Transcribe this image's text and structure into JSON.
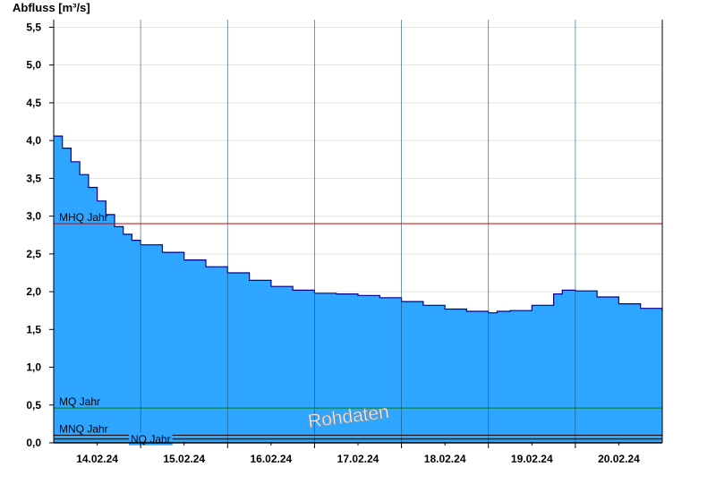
{
  "chart_data": {
    "type": "area",
    "ylabel": "Abfluss [m³/s]",
    "watermark": "Rohdaten",
    "ylim": [
      0,
      5.6
    ],
    "y_ticks": [
      "0,0",
      "0,5",
      "1,0",
      "1,5",
      "2,0",
      "2,5",
      "3,0",
      "3,5",
      "4,0",
      "4,5",
      "5,0",
      "5,5"
    ],
    "x_ticks": [
      "14.02.24",
      "15.02.24",
      "16.02.24",
      "17.02.24",
      "18.02.24",
      "19.02.24",
      "20.02.24"
    ],
    "x_range_days": [
      13.0,
      20.0
    ],
    "fill_color": "#2ea6ff",
    "line_color": "#00008b",
    "grid": true,
    "reference_lines": [
      {
        "label": "MHQ Jahr",
        "value": 2.9,
        "color": "#cc0000"
      },
      {
        "label": "MQ Jahr",
        "value": 0.46,
        "color": "#007a1f"
      },
      {
        "label": "MNQ Jahr",
        "value": 0.1,
        "color": "#000000"
      },
      {
        "label": "NQ Jahr",
        "value": 0.05,
        "color": "#000000"
      }
    ],
    "series": [
      {
        "day": [
          13.0,
          13.1,
          13.2,
          13.3,
          13.4,
          13.5,
          13.6,
          13.7,
          13.8,
          13.9,
          14.0,
          14.25,
          14.5,
          14.75,
          15.0,
          15.25,
          15.5,
          15.75,
          16.0,
          16.25,
          16.5,
          16.75,
          17.0,
          17.25,
          17.5,
          17.75,
          18.0,
          18.1,
          18.25,
          18.5,
          18.75,
          18.85,
          19.0,
          19.25,
          19.5,
          19.75,
          20.0
        ],
        "values": [
          4.06,
          3.9,
          3.72,
          3.55,
          3.38,
          3.2,
          3.02,
          2.86,
          2.76,
          2.68,
          2.62,
          2.52,
          2.42,
          2.33,
          2.25,
          2.15,
          2.07,
          2.02,
          1.98,
          1.97,
          1.95,
          1.92,
          1.87,
          1.82,
          1.77,
          1.74,
          1.72,
          1.74,
          1.75,
          1.82,
          1.97,
          2.02,
          2.01,
          1.93,
          1.84,
          1.78,
          1.74
        ]
      }
    ]
  }
}
